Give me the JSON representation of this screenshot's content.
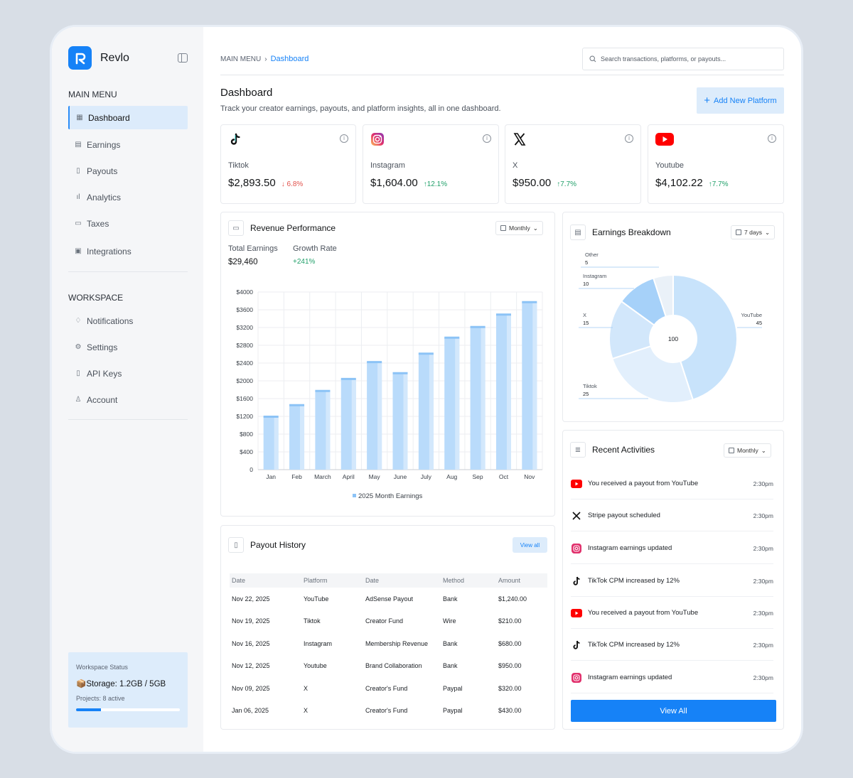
{
  "app": {
    "name": "Revlo",
    "logo_letter": "R"
  },
  "sidebar": {
    "main_menu_title": "MAIN MENU",
    "main_items": [
      {
        "label": "Dashboard",
        "icon": "grid-icon"
      },
      {
        "label": "Earnings",
        "icon": "earnings-icon"
      },
      {
        "label": "Payouts",
        "icon": "payouts-icon"
      },
      {
        "label": "Analytics",
        "icon": "analytics-icon"
      },
      {
        "label": "Taxes",
        "icon": "taxes-icon"
      },
      {
        "label": "Integrations",
        "icon": "integrations-icon"
      }
    ],
    "workspace_title": "WORKSPACE",
    "workspace_items": [
      {
        "label": "Notifications",
        "icon": "bell-icon"
      },
      {
        "label": "Settings",
        "icon": "gear-icon"
      },
      {
        "label": "API Keys",
        "icon": "key-icon"
      },
      {
        "label": "Account",
        "icon": "user-icon"
      }
    ],
    "workspace_status": {
      "label": "Workspace Status",
      "storage": "📦Storage: 1.2GB / 5GB",
      "projects": "Projects: 8 active",
      "storage_fraction": 0.24
    }
  },
  "header": {
    "breadcrumb_root": "MAIN MENU",
    "breadcrumb_current": "Dashboard",
    "search_placeholder": "Search transactions, platforms, or payouts...",
    "title": "Dashboard",
    "subtitle": "Track your creator earnings, payouts, and platform insights, all in one dashboard.",
    "add_button": "Add New Platform"
  },
  "stats": [
    {
      "name": "Tiktok",
      "value": "$2,893.50",
      "change": "6.8%",
      "direction": "down"
    },
    {
      "name": "Instagram",
      "value": "$1,604.00",
      "change": "12.1%",
      "direction": "up"
    },
    {
      "name": "X",
      "value": "$950.00",
      "change": "7.7%",
      "direction": "up"
    },
    {
      "name": "Youtube",
      "value": "$4,102.22",
      "change": "7.7%",
      "direction": "up"
    }
  ],
  "revenue": {
    "title": "Revenue Performance",
    "period": "Monthly",
    "total_label": "Total Earnings",
    "total_value": "$29,460",
    "growth_label": "Growth Rate",
    "growth_value": "+241%"
  },
  "chart_data": {
    "type": "bar",
    "categories": [
      "Jan",
      "Feb",
      "March",
      "April",
      "May",
      "June",
      "July",
      "Aug",
      "Sep",
      "Oct",
      "Nov"
    ],
    "series": [
      {
        "name": "2025 Month Earnings",
        "values": [
          1200,
          1460,
          1780,
          2050,
          2430,
          2180,
          2620,
          2980,
          3220,
          3500,
          3780
        ]
      }
    ],
    "yticks": [
      "0",
      "$400",
      "$800",
      "$1200",
      "$1600",
      "$2000",
      "$2400",
      "$2800",
      "$3200",
      "$3600",
      "$4000"
    ],
    "ylim": [
      0,
      4000
    ],
    "grid": true,
    "legend_position": "bottom"
  },
  "breakdown": {
    "title": "Earnings Breakdown",
    "period": "7 days",
    "center_label": "100",
    "slices": [
      {
        "name": "YouTube",
        "value": 45,
        "color": "#c8e3fb"
      },
      {
        "name": "Tiktok",
        "value": 25,
        "color": "#e2effc"
      },
      {
        "name": "X",
        "value": 15,
        "color": "#d2e7fb"
      },
      {
        "name": "Instagram",
        "value": 10,
        "color": "#a6d1f9"
      },
      {
        "name": "Other",
        "value": 5,
        "color": "#eaf1f8"
      }
    ]
  },
  "payouts": {
    "title": "Payout History",
    "view_all": "View all",
    "headers": [
      "Date",
      "Platform",
      "Date",
      "Method",
      "Amount"
    ],
    "rows": [
      [
        "Nov 22, 2025",
        "YouTube",
        "AdSense Payout",
        "Bank",
        "$1,240.00"
      ],
      [
        "Nov 19, 2025",
        "Tiktok",
        "Creator Fund",
        "Wire",
        "$210.00"
      ],
      [
        "Nov 16, 2025",
        "Instagram",
        "Membership Revenue",
        "Bank",
        "$680.00"
      ],
      [
        "Nov 12, 2025",
        "Youtube",
        "Brand Collaboration",
        "Bank",
        "$950.00"
      ],
      [
        "Nov 09, 2025",
        "X",
        "Creator's Fund",
        "Paypal",
        "$320.00"
      ],
      [
        "Jan 06, 2025",
        "X",
        "Creator's Fund",
        "Paypal",
        "$430.00"
      ]
    ]
  },
  "activities": {
    "title": "Recent Activities",
    "period": "Monthly",
    "view_all": "View All",
    "items": [
      {
        "icon": "youtube-icon",
        "text": "You received a payout from YouTube",
        "time": "2:30pm"
      },
      {
        "icon": "x-icon",
        "text": "Stripe payout scheduled",
        "time": "2:30pm"
      },
      {
        "icon": "instagram-icon",
        "text": "Instagram earnings updated",
        "time": "2:30pm"
      },
      {
        "icon": "tiktok-icon",
        "text": "TikTok CPM increased by 12%",
        "time": "2:30pm"
      },
      {
        "icon": "youtube-icon",
        "text": "You received a payout from YouTube",
        "time": "2:30pm"
      },
      {
        "icon": "tiktok-icon",
        "text": "TikTok CPM increased by 12%",
        "time": "2:30pm"
      },
      {
        "icon": "instagram-icon",
        "text": "Instagram earnings updated",
        "time": "2:30pm"
      }
    ]
  }
}
